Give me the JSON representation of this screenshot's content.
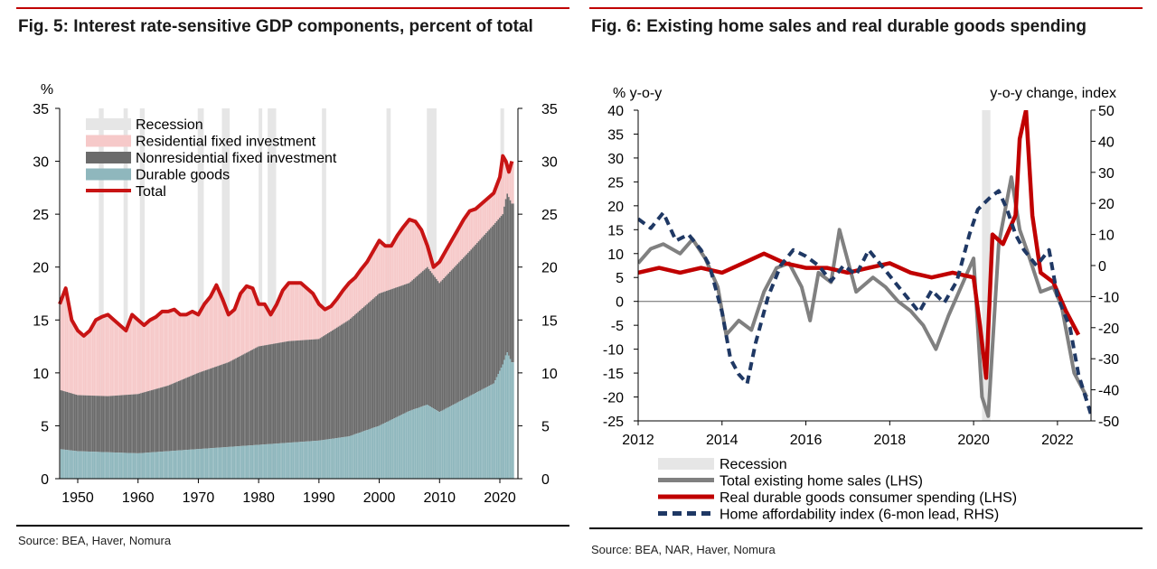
{
  "colors": {
    "accent": "#c00000",
    "recession": "#e6e6e6",
    "residential": "#f6c9c9",
    "nonresidential": "#6b6b6b",
    "durable": "#8fb7bd",
    "total": "#c81414",
    "home_sales": "#808080",
    "durable_spending": "#c00000",
    "affordability": "#1f3864"
  },
  "fig5": {
    "title": "Fig. 5: Interest rate-sensitive GDP components, percent of total",
    "source": "Source: BEA, Haver, Nomura"
  },
  "fig6": {
    "title": "Fig. 6: Existing home sales and real durable goods spending",
    "source": "Source: BEA, NAR, Haver, Nomura"
  },
  "chart_data": [
    {
      "type": "area",
      "title": "Fig. 5: Interest rate-sensitive GDP components, percent of total",
      "ylabel_left": "%",
      "ylim": [
        0,
        35
      ],
      "yticks": [
        0,
        5,
        10,
        15,
        20,
        25,
        30,
        35
      ],
      "xlim": [
        1947,
        2023
      ],
      "xticks": [
        1950,
        1960,
        1970,
        1980,
        1990,
        2000,
        2010,
        2020
      ],
      "legend": [
        "Recession",
        "Residential fixed investment",
        "Nonresidential fixed investment",
        "Durable goods",
        "Total"
      ],
      "recessions": [
        [
          1953.5,
          1954.3
        ],
        [
          1957.6,
          1958.3
        ],
        [
          1960.3,
          1961.1
        ],
        [
          1969.9,
          1970.9
        ],
        [
          1973.9,
          1975.2
        ],
        [
          1980.0,
          1980.5
        ],
        [
          1981.5,
          1982.9
        ],
        [
          1990.5,
          1991.2
        ],
        [
          2001.2,
          2001.9
        ],
        [
          2007.9,
          2009.5
        ],
        [
          2020.1,
          2020.4
        ]
      ],
      "series": [
        {
          "name": "Durable goods",
          "x": [
            1947,
            1950,
            1955,
            1960,
            1965,
            1970,
            1975,
            1980,
            1985,
            1990,
            1995,
            2000,
            2005,
            2008,
            2010,
            2015,
            2019,
            2020.5,
            2021.2,
            2022
          ],
          "values": [
            2.8,
            2.6,
            2.5,
            2.4,
            2.6,
            2.8,
            3.0,
            3.2,
            3.4,
            3.6,
            4.0,
            5.0,
            6.4,
            7.0,
            6.3,
            7.8,
            9.0,
            10.8,
            12.0,
            11.0
          ]
        },
        {
          "name": "Nonresidential fixed investment",
          "x": [
            1947,
            1950,
            1955,
            1960,
            1965,
            1970,
            1975,
            1980,
            1985,
            1990,
            1995,
            2000,
            2005,
            2008,
            2010,
            2015,
            2019,
            2020.5,
            2021.2,
            2022
          ],
          "values": [
            8.4,
            7.9,
            7.8,
            8.0,
            8.8,
            10.0,
            11.0,
            12.5,
            13.0,
            13.2,
            15.0,
            17.5,
            18.5,
            20.0,
            18.5,
            21.5,
            24.0,
            25.0,
            27.0,
            26.0
          ]
        },
        {
          "name": "Total",
          "x": [
            1947,
            1948,
            1949,
            1950,
            1951,
            1952,
            1953,
            1954,
            1955,
            1956,
            1957,
            1958,
            1959,
            1960,
            1961,
            1962,
            1963,
            1964,
            1965,
            1966,
            1967,
            1968,
            1969,
            1970,
            1971,
            1972,
            1973,
            1974,
            1975,
            1976,
            1977,
            1978,
            1979,
            1980,
            1981,
            1982,
            1983,
            1984,
            1985,
            1986,
            1987,
            1988,
            1989,
            1990,
            1991,
            1992,
            1993,
            1994,
            1995,
            1996,
            1997,
            1998,
            1999,
            2000,
            2001,
            2002,
            2003,
            2004,
            2005,
            2006,
            2007,
            2008,
            2009,
            2010,
            2011,
            2012,
            2013,
            2014,
            2015,
            2016,
            2017,
            2018,
            2019,
            2020,
            2020.5,
            2021,
            2021.5,
            2022
          ],
          "values": [
            16.5,
            18.0,
            15.0,
            14.0,
            13.5,
            14.0,
            15.0,
            15.3,
            15.5,
            15.0,
            14.5,
            14.0,
            15.5,
            15.0,
            14.5,
            15.0,
            15.3,
            15.8,
            15.8,
            16.0,
            15.5,
            15.5,
            15.8,
            15.5,
            16.5,
            17.2,
            18.3,
            17.0,
            15.5,
            16.0,
            17.5,
            18.2,
            18.0,
            16.5,
            16.5,
            15.5,
            16.5,
            17.8,
            18.5,
            18.5,
            18.5,
            18.0,
            17.5,
            16.5,
            16.0,
            16.3,
            17.0,
            17.8,
            18.5,
            19.0,
            19.8,
            20.5,
            21.5,
            22.5,
            22.0,
            22.0,
            23.0,
            23.8,
            24.5,
            24.3,
            23.5,
            22.0,
            20.0,
            20.5,
            21.5,
            22.5,
            23.5,
            24.5,
            25.3,
            25.5,
            26.0,
            26.5,
            27.0,
            28.5,
            30.5,
            30.0,
            29.0,
            30.0
          ]
        },
        {
          "name": "Residential fixed investment",
          "note": "Filled between nonresidential top and Total line"
        }
      ]
    },
    {
      "type": "line",
      "title": "Fig. 6: Existing home sales and real durable goods spending",
      "ylabel_left": "% y-o-y",
      "ylabel_right": "y-o-y change, index",
      "ylim_left": [
        -25,
        40
      ],
      "yticks_left": [
        -25,
        -20,
        -15,
        -10,
        -5,
        0,
        5,
        10,
        15,
        20,
        25,
        30,
        35,
        40
      ],
      "ylim_right": [
        -50,
        50
      ],
      "yticks_right": [
        -50,
        -40,
        -30,
        -20,
        -10,
        0,
        10,
        20,
        30,
        40,
        50
      ],
      "xlim": [
        2012,
        2022.8
      ],
      "xticks": [
        2012,
        2014,
        2016,
        2018,
        2020,
        2022
      ],
      "legend": [
        "Recession",
        "Total existing home sales (LHS)",
        "Real durable goods consumer spending (LHS)",
        "Home affordability index (6-mon lead, RHS)"
      ],
      "recessions": [
        [
          2020.2,
          2020.4
        ]
      ],
      "series": [
        {
          "name": "Total existing home sales (LHS)",
          "axis": "left",
          "x": [
            2012,
            2012.3,
            2012.6,
            2013,
            2013.3,
            2013.6,
            2013.9,
            2014.1,
            2014.4,
            2014.7,
            2015,
            2015.3,
            2015.6,
            2015.9,
            2016.1,
            2016.3,
            2016.6,
            2016.8,
            2017.2,
            2017.6,
            2017.9,
            2018.2,
            2018.5,
            2018.8,
            2019.1,
            2019.4,
            2019.7,
            2020,
            2020.2,
            2020.35,
            2020.6,
            2020.9,
            2021.1,
            2021.3,
            2021.6,
            2021.9,
            2022.1,
            2022.4,
            2022.7
          ],
          "values": [
            8,
            11,
            12,
            10,
            13,
            9,
            3,
            -7,
            -4,
            -6,
            2,
            7,
            8,
            3,
            -4,
            6,
            4,
            15,
            2,
            5,
            3,
            0,
            -2,
            -5,
            -10,
            -3,
            3,
            9,
            -20,
            -24,
            12,
            26,
            15,
            10,
            2,
            3,
            -1,
            -15,
            -20
          ]
        },
        {
          "name": "Real durable goods consumer spending (LHS)",
          "axis": "left",
          "x": [
            2012,
            2012.5,
            2013,
            2013.5,
            2014,
            2014.5,
            2015,
            2015.5,
            2016,
            2016.5,
            2017,
            2017.5,
            2018,
            2018.5,
            2019,
            2019.5,
            2020,
            2020.15,
            2020.3,
            2020.45,
            2020.7,
            2021,
            2021.1,
            2021.25,
            2021.4,
            2021.6,
            2021.9,
            2022.2,
            2022.5
          ],
          "values": [
            6,
            7,
            6,
            7,
            6,
            8,
            10,
            8,
            7,
            7,
            6,
            7,
            8,
            6,
            5,
            6,
            5,
            -5,
            -16,
            14,
            12,
            18,
            34,
            40,
            18,
            6,
            4,
            -2,
            -7
          ]
        },
        {
          "name": "Home affordability index (6-mon lead, RHS)",
          "axis": "right",
          "x": [
            2012,
            2012.3,
            2012.6,
            2012.9,
            2013.2,
            2013.5,
            2013.7,
            2014,
            2014.2,
            2014.4,
            2014.6,
            2014.8,
            2015.1,
            2015.4,
            2015.7,
            2016,
            2016.3,
            2016.6,
            2016.9,
            2017.2,
            2017.5,
            2017.8,
            2018.1,
            2018.4,
            2018.7,
            2019,
            2019.3,
            2019.6,
            2019.9,
            2020.1,
            2020.4,
            2020.6,
            2020.8,
            2021,
            2021.2,
            2021.5,
            2021.8,
            2022,
            2022.3,
            2022.5,
            2022.8
          ],
          "values": [
            15,
            12,
            17,
            8,
            10,
            5,
            0,
            -15,
            -30,
            -35,
            -38,
            -25,
            -10,
            0,
            5,
            3,
            0,
            -5,
            0,
            -3,
            5,
            0,
            -5,
            -10,
            -15,
            -8,
            -12,
            -5,
            10,
            18,
            22,
            24,
            18,
            10,
            5,
            0,
            5,
            -10,
            -20,
            -35,
            -48
          ]
        }
      ]
    }
  ]
}
